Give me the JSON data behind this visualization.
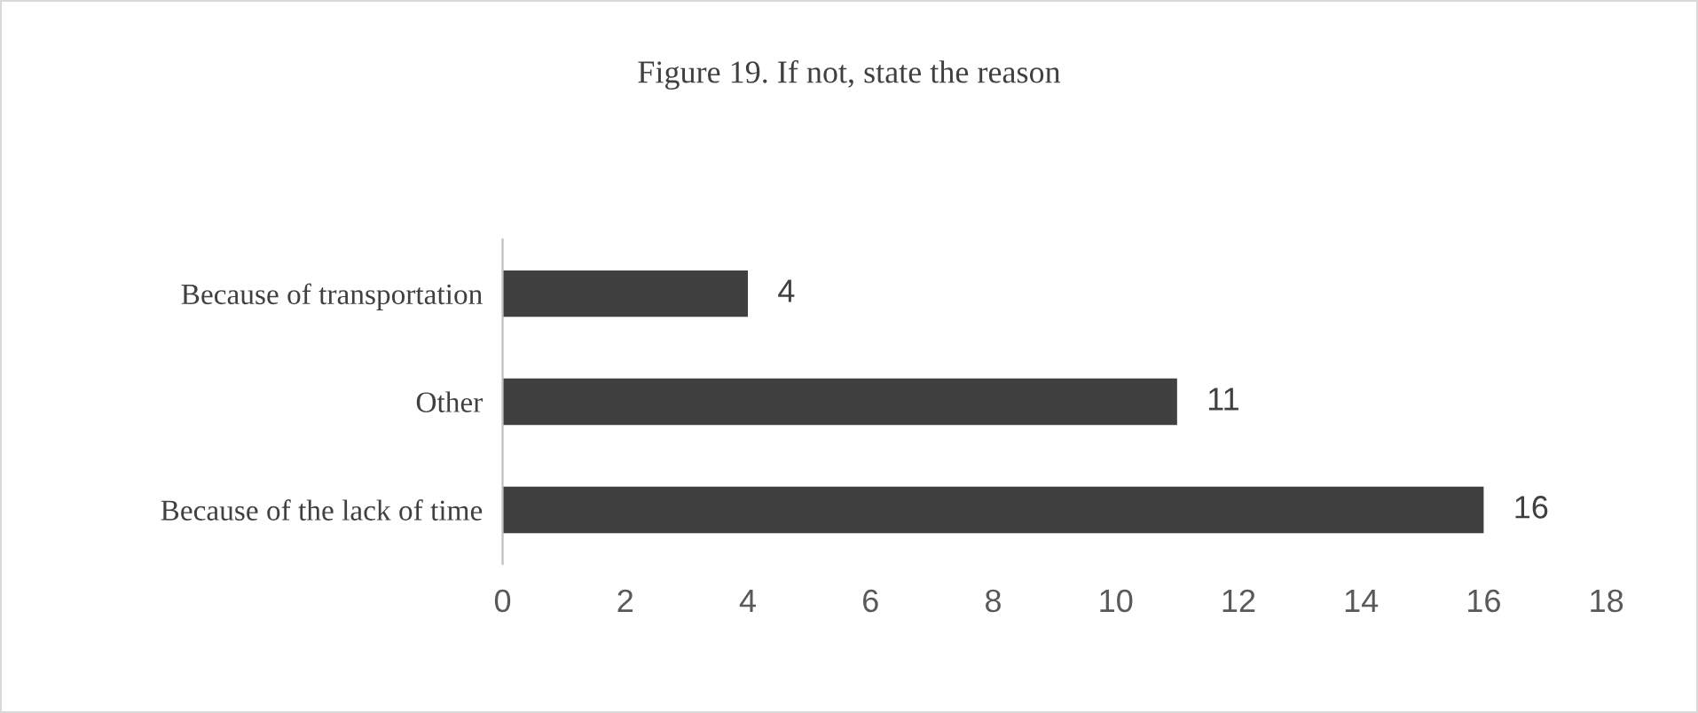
{
  "chart_data": {
    "type": "bar",
    "orientation": "horizontal",
    "title": "Figure 19. If not, state the reason",
    "categories": [
      "Because of transportation",
      "Other",
      "Because of the lack of time"
    ],
    "values": [
      4,
      11,
      16
    ],
    "color": "#404040",
    "xlim": [
      0,
      18
    ],
    "xticks": [
      0,
      2,
      4,
      6,
      8,
      10,
      12,
      14,
      16,
      18
    ],
    "grid": false,
    "legend": false,
    "data_labels": true
  }
}
